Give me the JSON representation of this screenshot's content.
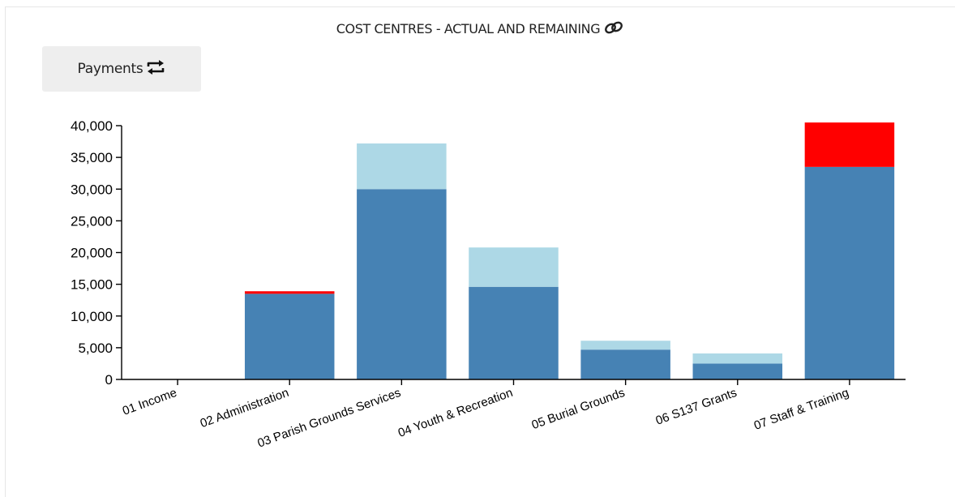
{
  "header": {
    "title": "COST CENTRES - ACTUAL AND REMAINING",
    "link_icon": "link-icon"
  },
  "toolbar": {
    "payments_label": "Payments",
    "swap_icon": "swap-arrows-icon"
  },
  "colors": {
    "actual": "#4682b4",
    "remaining": "#add8e6",
    "overspend": "#ff0000"
  },
  "chart_data": {
    "type": "bar",
    "stacked": true,
    "title": "COST CENTRES - ACTUAL AND REMAINING",
    "xlabel": "",
    "ylabel": "",
    "ylim": [
      0,
      40000
    ],
    "yticks": [
      0,
      5000,
      10000,
      15000,
      20000,
      25000,
      30000,
      35000,
      40000
    ],
    "ytick_labels": [
      "0",
      "5,000",
      "10,000",
      "15,000",
      "20,000",
      "25,000",
      "30,000",
      "35,000",
      "40,000"
    ],
    "categories": [
      "01 Income",
      "02 Administration",
      "03 Parish Grounds Services",
      "04 Youth & Recreation",
      "05 Burial Grounds",
      "06 S137 Grants",
      "07 Staff & Training"
    ],
    "series": [
      {
        "key": "actual",
        "values": [
          0,
          13500,
          30000,
          14600,
          4700,
          2500,
          33500
        ]
      },
      {
        "key": "remaining",
        "values": [
          0,
          0,
          7200,
          6200,
          1400,
          1600,
          0
        ]
      },
      {
        "key": "overspend",
        "values": [
          0,
          400,
          0,
          0,
          0,
          0,
          7000
        ]
      }
    ],
    "grid": false,
    "legend": "none"
  }
}
